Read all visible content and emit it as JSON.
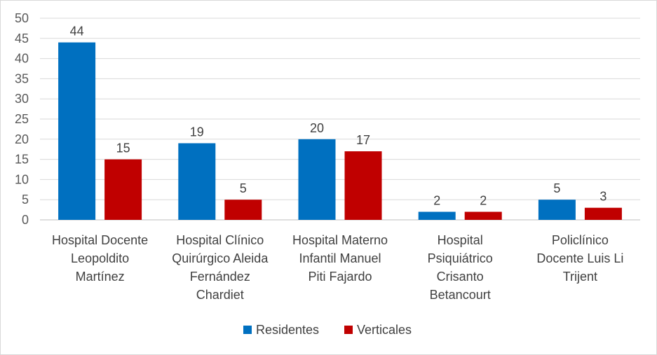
{
  "chart_data": {
    "type": "bar",
    "categories": [
      [
        "Hospital Docente",
        "Leopoldito",
        "Martínez"
      ],
      [
        "Hospital Clínico",
        "Quirúrgico Aleida",
        "Fernández",
        "Chardiet"
      ],
      [
        "Hospital  Materno",
        "Infantil  Manuel",
        "Piti Fajardo"
      ],
      [
        "Hospital",
        "Psiquiátrico",
        "Crisanto",
        "Betancourt"
      ],
      [
        "Policlínico",
        "Docente  Luis Li",
        "Trijent"
      ]
    ],
    "series": [
      {
        "name": "Residentes",
        "color": "#0070c0",
        "values": [
          44,
          19,
          20,
          2,
          5
        ]
      },
      {
        "name": "Verticales",
        "color": "#c00000",
        "values": [
          15,
          5,
          17,
          2,
          3
        ]
      }
    ],
    "ylim": [
      0,
      50
    ],
    "yticks": [
      0,
      5,
      10,
      15,
      20,
      25,
      30,
      35,
      40,
      45,
      50
    ],
    "grid": true,
    "data_labels": true,
    "legend_position": "bottom"
  }
}
